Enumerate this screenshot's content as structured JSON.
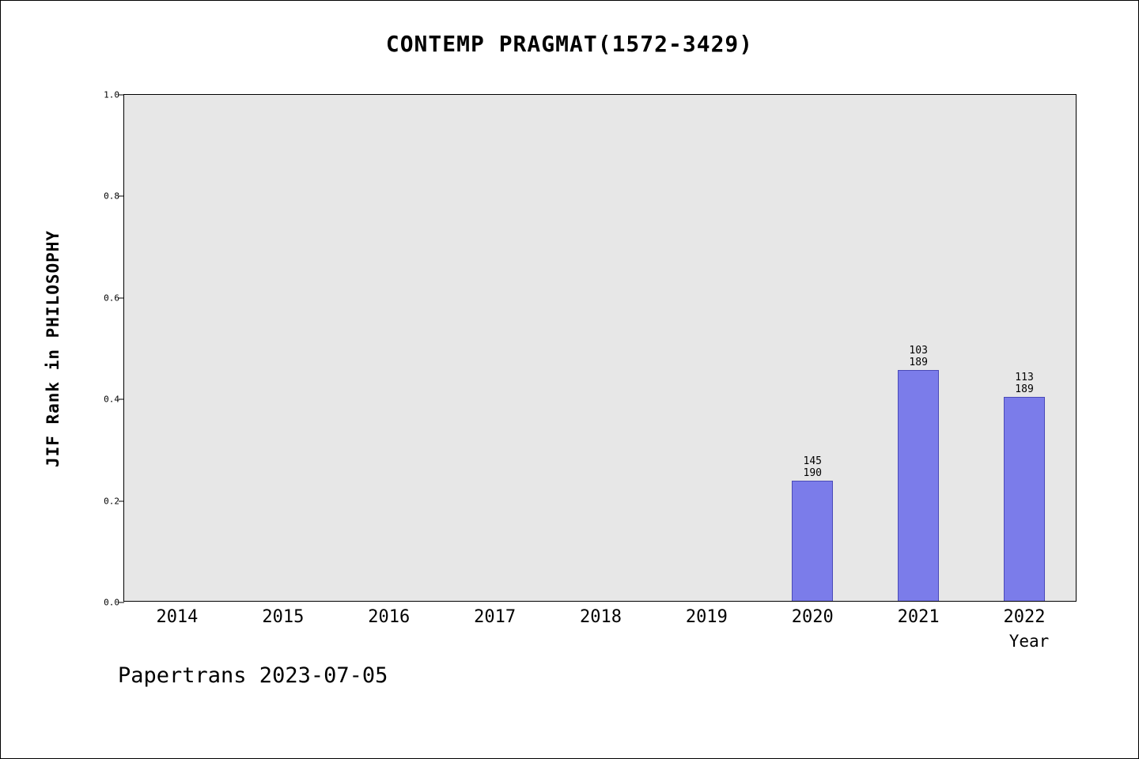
{
  "footer": {
    "text": "Papertrans 2023-07-05"
  },
  "chart_data": {
    "type": "bar",
    "title": "CONTEMP PRAGMAT(1572-3429)",
    "xlabel": "Year",
    "ylabel": "JIF Rank in PHILOSOPHY",
    "categories": [
      "2014",
      "2015",
      "2016",
      "2017",
      "2018",
      "2019",
      "2020",
      "2021",
      "2022"
    ],
    "y_ticks": [
      "0.0",
      "0.2",
      "0.4",
      "0.6",
      "0.8",
      "1.0"
    ],
    "ylim": [
      0,
      1
    ],
    "grid": "off",
    "legend": "none",
    "bars": [
      {
        "year": "2020",
        "rank": 145,
        "total": 190,
        "value": 0.237
      },
      {
        "year": "2021",
        "rank": 103,
        "total": 189,
        "value": 0.455
      },
      {
        "year": "2022",
        "rank": 113,
        "total": 189,
        "value": 0.402
      }
    ],
    "colors": {
      "bar_fill": "#7b7cea",
      "bar_edge": "#4a4ab8",
      "plot_background": "#e7e7e7"
    }
  }
}
